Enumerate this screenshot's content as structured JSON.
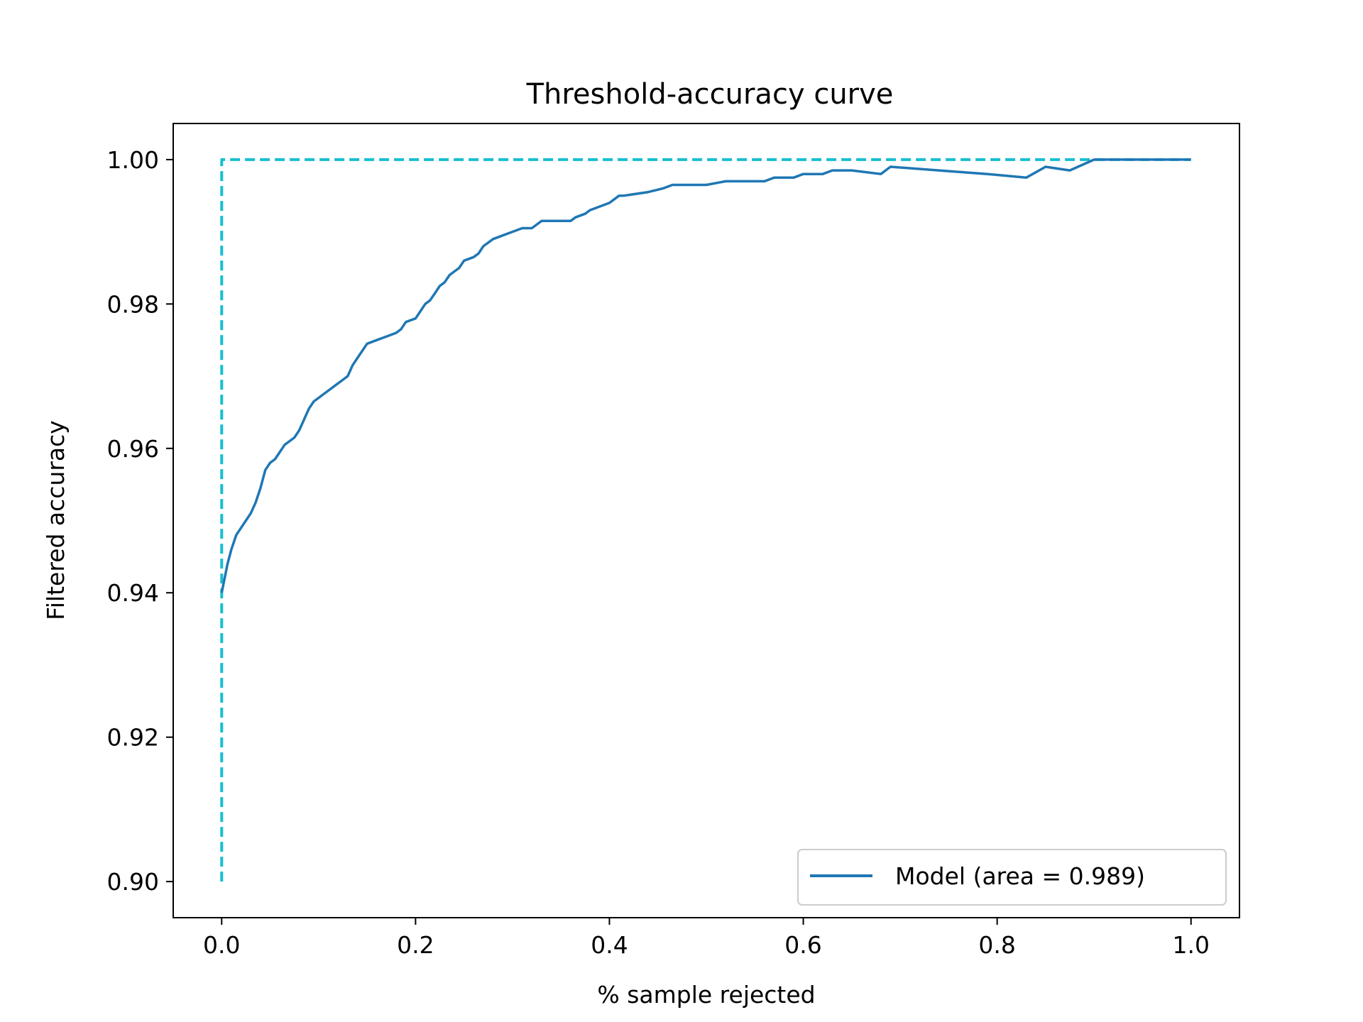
{
  "chart_data": {
    "type": "line",
    "title": "Threshold-accuracy curve",
    "xlabel": "% sample rejected",
    "ylabel": "Filtered accuracy",
    "xlim": [
      -0.05,
      1.05
    ],
    "ylim": [
      0.895,
      1.005
    ],
    "xticks": [
      0.0,
      0.2,
      0.4,
      0.6,
      0.8,
      1.0
    ],
    "xtick_labels": [
      "0.0",
      "0.2",
      "0.4",
      "0.6",
      "0.8",
      "1.0"
    ],
    "yticks": [
      0.9,
      0.92,
      0.94,
      0.96,
      0.98,
      1.0
    ],
    "ytick_labels": [
      "0.90",
      "0.92",
      "0.94",
      "0.96",
      "0.98",
      "1.00"
    ],
    "grid": false,
    "legend_position": "lower-right",
    "series": [
      {
        "name": "",
        "style": "dashed",
        "color": "#17becf",
        "x": [
          0.0,
          0.0,
          1.0
        ],
        "y": [
          0.9,
          1.0,
          1.0
        ]
      },
      {
        "name": "Model (area = 0.989)",
        "style": "solid",
        "color": "#1f77b4",
        "x": [
          0.0,
          0.003,
          0.006,
          0.01,
          0.015,
          0.02,
          0.025,
          0.03,
          0.035,
          0.04,
          0.045,
          0.05,
          0.055,
          0.06,
          0.065,
          0.07,
          0.075,
          0.08,
          0.085,
          0.09,
          0.095,
          0.1,
          0.105,
          0.11,
          0.115,
          0.12,
          0.125,
          0.13,
          0.135,
          0.14,
          0.145,
          0.15,
          0.16,
          0.17,
          0.18,
          0.185,
          0.19,
          0.2,
          0.205,
          0.21,
          0.215,
          0.22,
          0.225,
          0.23,
          0.235,
          0.24,
          0.245,
          0.25,
          0.26,
          0.265,
          0.27,
          0.28,
          0.29,
          0.3,
          0.31,
          0.32,
          0.33,
          0.345,
          0.36,
          0.365,
          0.375,
          0.38,
          0.39,
          0.4,
          0.41,
          0.415,
          0.44,
          0.455,
          0.465,
          0.5,
          0.52,
          0.54,
          0.56,
          0.57,
          0.58,
          0.59,
          0.6,
          0.61,
          0.62,
          0.63,
          0.65,
          0.68,
          0.69,
          0.74,
          0.79,
          0.83,
          0.85,
          0.875,
          0.9,
          0.95,
          1.0
        ],
        "y": [
          0.94,
          0.942,
          0.944,
          0.946,
          0.948,
          0.949,
          0.95,
          0.951,
          0.9525,
          0.9545,
          0.957,
          0.958,
          0.9585,
          0.9595,
          0.9605,
          0.961,
          0.9615,
          0.9625,
          0.964,
          0.9655,
          0.9665,
          0.967,
          0.9675,
          0.968,
          0.9685,
          0.969,
          0.9695,
          0.97,
          0.9715,
          0.9725,
          0.9735,
          0.9745,
          0.975,
          0.9755,
          0.976,
          0.9765,
          0.9775,
          0.978,
          0.979,
          0.98,
          0.9805,
          0.9815,
          0.9825,
          0.983,
          0.984,
          0.9845,
          0.985,
          0.986,
          0.9865,
          0.987,
          0.988,
          0.989,
          0.9895,
          0.99,
          0.9905,
          0.9905,
          0.9915,
          0.9915,
          0.9915,
          0.992,
          0.9925,
          0.993,
          0.9935,
          0.994,
          0.995,
          0.995,
          0.9955,
          0.996,
          0.9965,
          0.9965,
          0.997,
          0.997,
          0.997,
          0.9975,
          0.9975,
          0.9975,
          0.998,
          0.998,
          0.998,
          0.9985,
          0.9985,
          0.998,
          0.999,
          0.9985,
          0.998,
          0.9975,
          0.999,
          0.9985,
          1.0,
          1.0,
          1.0
        ]
      }
    ]
  }
}
